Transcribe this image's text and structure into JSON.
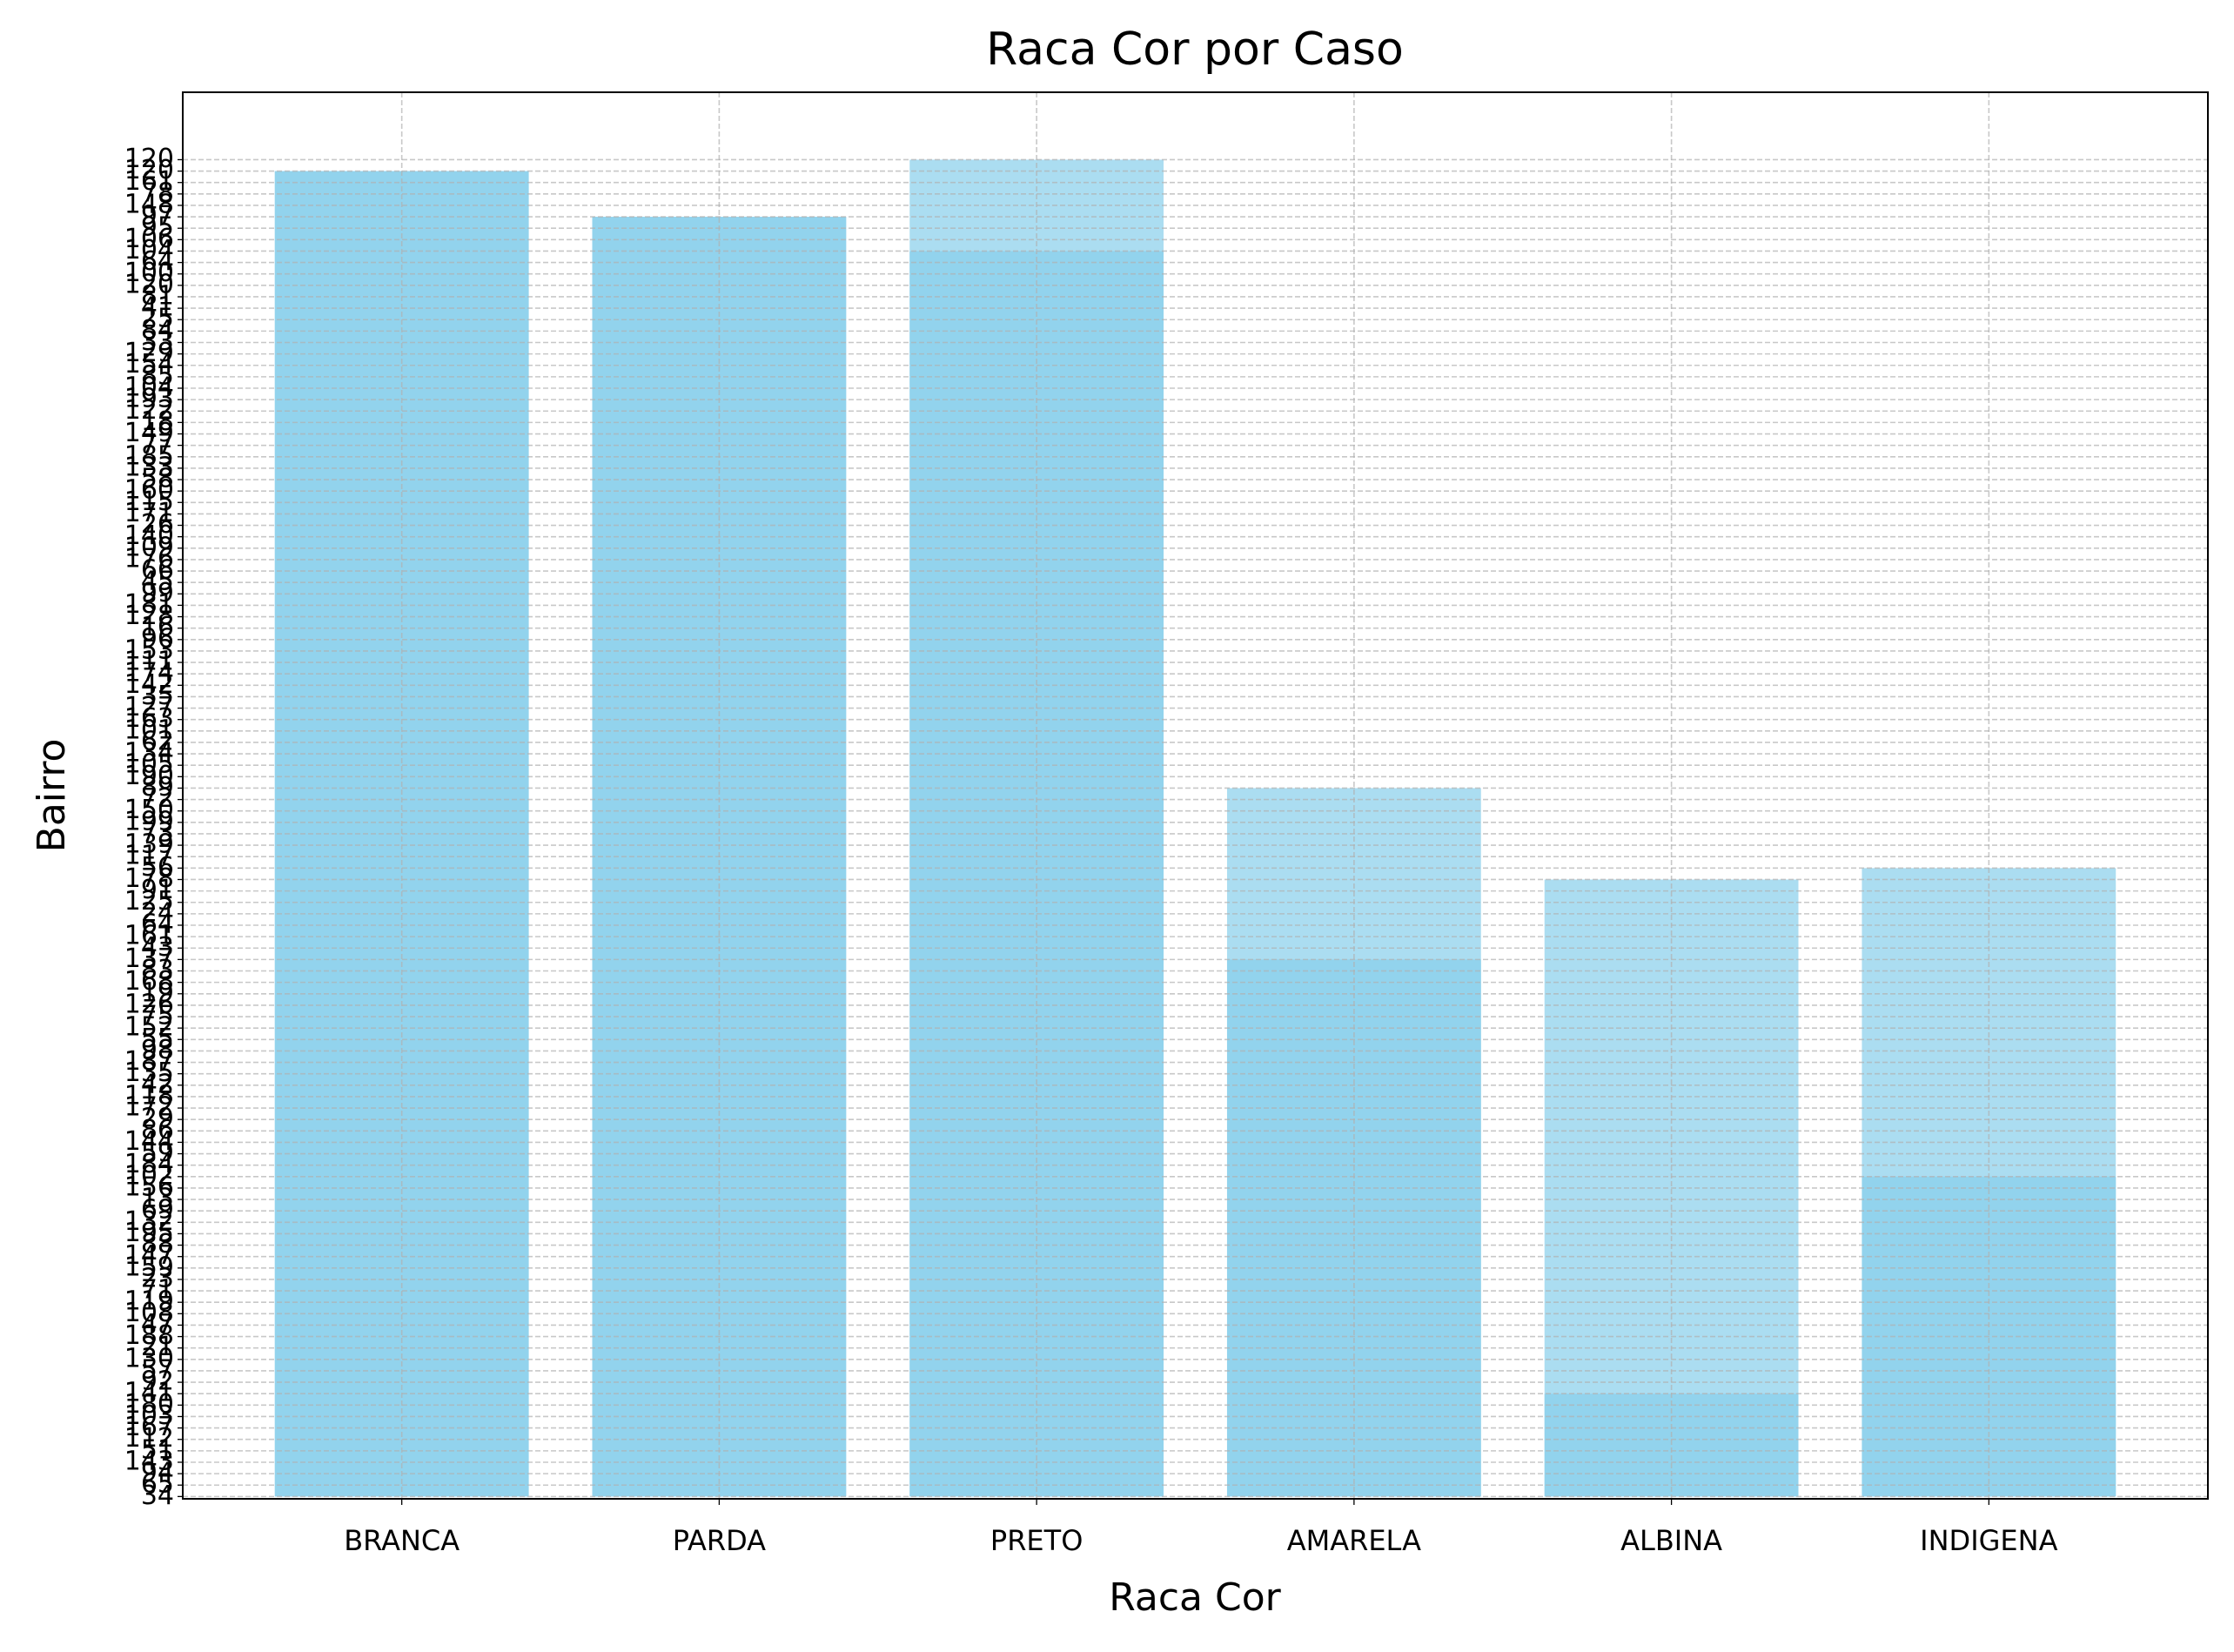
{
  "chart_data": {
    "type": "bar",
    "title": "Raca Cor por Caso",
    "xlabel": "Raca Cor",
    "ylabel": "Bairro",
    "categories": [
      "BRANCA",
      "PARDA",
      "PRETO",
      "AMARELA",
      "ALBINA",
      "INDIGENA"
    ],
    "series": [
      {
        "color": "#87ceeb",
        "values": [
          116,
          112,
          117,
          62,
          54,
          55
        ]
      },
      {
        "color": "#87ceeb",
        "values": [
          116,
          112,
          109,
          47,
          9,
          28
        ]
      }
    ],
    "alpha": 0.7,
    "ycategories": [
      "34",
      "65",
      "94",
      "143",
      "51",
      "112",
      "167",
      "103",
      "180",
      "141",
      "92",
      "57",
      "130",
      "21",
      "188",
      "47",
      "108",
      "119",
      "71",
      "23",
      "159",
      "147",
      "88",
      "195",
      "132",
      "69",
      "13",
      "156",
      "102",
      "184",
      "59",
      "144",
      "86",
      "29",
      "172",
      "118",
      "42",
      "135",
      "187",
      "98",
      "55",
      "152",
      "75",
      "126",
      "19",
      "168",
      "83",
      "137",
      "43",
      "161",
      "64",
      "24",
      "125",
      "91",
      "178",
      "56",
      "117",
      "139",
      "73",
      "199",
      "150",
      "72",
      "89",
      "190",
      "105",
      "134",
      "62",
      "101",
      "163",
      "127",
      "35",
      "142",
      "174",
      "111",
      "153",
      "96",
      "16",
      "128",
      "181",
      "99",
      "45",
      "66",
      "176",
      "109",
      "140",
      "26",
      "171",
      "115",
      "160",
      "58",
      "133",
      "185",
      "77",
      "149",
      "18",
      "122",
      "193",
      "104",
      "85",
      "154",
      "129",
      "33",
      "84",
      "25",
      "41",
      "81",
      "120",
      "100",
      "64",
      "104",
      "106",
      "95",
      "97",
      "148",
      "78",
      "161",
      "120",
      "120"
    ],
    "ylim": [
      -0.2,
      122.9
    ],
    "grid": true
  }
}
